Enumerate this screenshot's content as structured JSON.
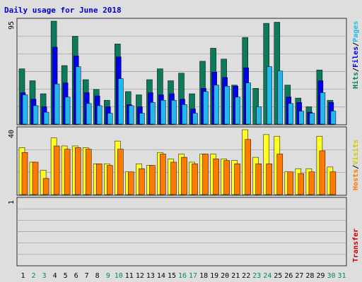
{
  "title": "Daily usage for June 2018",
  "side_labels": {
    "hits": "Hits",
    "files": "Files",
    "pages": "Pages",
    "hosts": "Hosts",
    "visits": "Visits",
    "transfer": "Transfer",
    "sep": "/"
  },
  "colors": {
    "hits": "#0e7a5c",
    "files": "#0000ee",
    "pages": "#22b8ee",
    "visits": "#ffff22",
    "hosts": "#ff7a00",
    "transfer": "#cc0000",
    "weekend_label": "#008866",
    "weekday_label": "#000000",
    "title": "#0000cc"
  },
  "chart_data": [
    {
      "type": "bar",
      "panel": "hits-files-pages",
      "title": "Daily usage for June 2018",
      "y_max_label": "95",
      "ylim": [
        0,
        95
      ],
      "categories": [
        "1",
        "2",
        "3",
        "4",
        "5",
        "6",
        "7",
        "8",
        "9",
        "10",
        "11",
        "12",
        "13",
        "14",
        "15",
        "16",
        "17",
        "18",
        "19",
        "20",
        "21",
        "22",
        "23",
        "24",
        "25",
        "26",
        "27",
        "28",
        "29",
        "30",
        "31"
      ],
      "weekend_days": [
        "2",
        "3",
        "9",
        "10",
        "16",
        "17",
        "23",
        "24",
        "30",
        "31"
      ],
      "series": [
        {
          "name": "Hits",
          "values": [
            51,
            40,
            28,
            95,
            54,
            81,
            41,
            32,
            22,
            74,
            30,
            27,
            41,
            51,
            40,
            47,
            28,
            58,
            70,
            60,
            36,
            80,
            33,
            93,
            94,
            36,
            24,
            16,
            50,
            22,
            0
          ]
        },
        {
          "name": "Files",
          "values": [
            29,
            23,
            16,
            71,
            38,
            63,
            29,
            26,
            16,
            62,
            18,
            16,
            29,
            27,
            28,
            23,
            14,
            33,
            48,
            43,
            35,
            52,
            0,
            0,
            0,
            25,
            20,
            11,
            40,
            20,
            0
          ]
        },
        {
          "name": "Pages",
          "values": [
            27,
            17,
            11,
            37,
            25,
            53,
            19,
            17,
            10,
            42,
            17,
            10,
            20,
            22,
            22,
            18,
            10,
            30,
            36,
            35,
            25,
            38,
            16,
            53,
            49,
            19,
            12,
            10,
            29,
            12,
            0
          ]
        }
      ]
    },
    {
      "type": "bar",
      "panel": "hosts-visits",
      "y_max_label": "40",
      "ylim": [
        0,
        40
      ],
      "categories": [
        "1",
        "2",
        "3",
        "4",
        "5",
        "6",
        "7",
        "8",
        "9",
        "10",
        "11",
        "12",
        "13",
        "14",
        "15",
        "16",
        "17",
        "18",
        "19",
        "20",
        "21",
        "22",
        "23",
        "24",
        "25",
        "26",
        "27",
        "28",
        "29",
        "30",
        "31"
      ],
      "series": [
        {
          "name": "Visits",
          "values": [
            29,
            20,
            15,
            35,
            30,
            30,
            29,
            19,
            19,
            33,
            14,
            19,
            18,
            26,
            22,
            25,
            20,
            25,
            25,
            22,
            21,
            40,
            23,
            37,
            36,
            14,
            16,
            16,
            36,
            17,
            0
          ]
        },
        {
          "name": "Hosts",
          "values": [
            26,
            20,
            10,
            30,
            28,
            29,
            28,
            19,
            18,
            28,
            14,
            16,
            18,
            25,
            20,
            23,
            19,
            25,
            22,
            21,
            19,
            34,
            19,
            19,
            25,
            14,
            13,
            14,
            27,
            14,
            0
          ]
        }
      ]
    },
    {
      "type": "bar",
      "panel": "transfer",
      "y_max_label": "1",
      "ylim": [
        0,
        1
      ],
      "categories": [
        "1",
        "2",
        "3",
        "4",
        "5",
        "6",
        "7",
        "8",
        "9",
        "10",
        "11",
        "12",
        "13",
        "14",
        "15",
        "16",
        "17",
        "18",
        "19",
        "20",
        "21",
        "22",
        "23",
        "24",
        "25",
        "26",
        "27",
        "28",
        "29",
        "30",
        "31"
      ],
      "series": [
        {
          "name": "Transfer",
          "values": [
            0,
            0,
            0,
            0,
            0,
            0,
            0,
            0,
            0,
            0,
            0,
            0,
            0,
            0,
            0,
            0,
            0,
            0,
            0,
            0,
            0,
            0,
            0,
            0,
            0,
            0,
            0,
            0,
            0,
            0,
            0
          ]
        }
      ]
    }
  ]
}
